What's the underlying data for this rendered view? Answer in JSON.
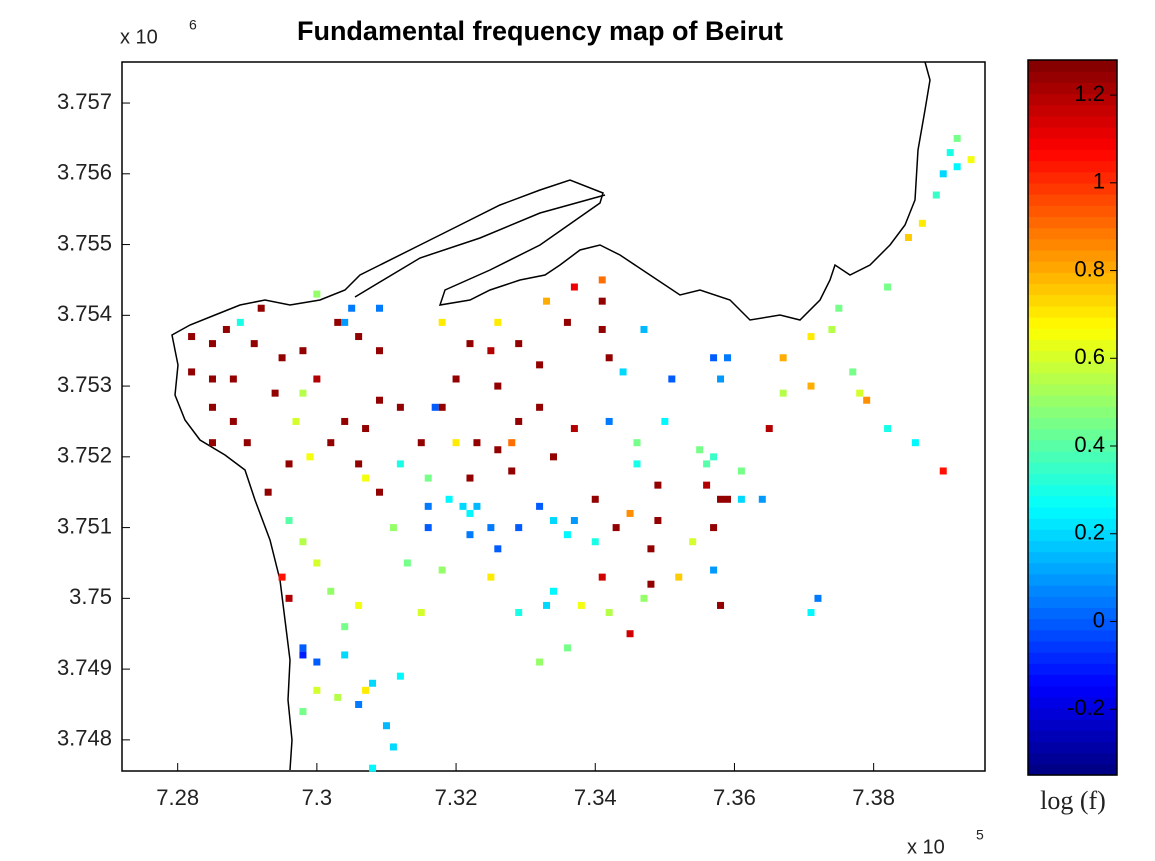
{
  "chart_data": {
    "type": "scatter",
    "title": "Fundamental frequency map of Beirut",
    "x_scale_label": "x 10",
    "x_scale_exponent": "5",
    "y_scale_label": "x 10",
    "y_scale_exponent": "6",
    "colorbar_label": "log (f)",
    "xlim": [
      7.272,
      7.396
    ],
    "ylim": [
      3.74756,
      3.75758
    ],
    "xticks": [
      7.28,
      7.3,
      7.32,
      7.34,
      7.36,
      7.38
    ],
    "yticks": [
      3.748,
      3.749,
      3.75,
      3.751,
      3.752,
      3.753,
      3.754,
      3.755,
      3.756,
      3.757
    ],
    "clim": [
      -0.35,
      1.28
    ],
    "cticks": [
      -0.2,
      0,
      0.2,
      0.4,
      0.6,
      0.8,
      1,
      1.2
    ],
    "colormap": "jet",
    "x": [
      7.282,
      7.285,
      7.287,
      7.292,
      7.291,
      7.282,
      7.285,
      7.288,
      7.285,
      7.288,
      7.29,
      7.285,
      7.294,
      7.298,
      7.295,
      7.3,
      7.303,
      7.306,
      7.309,
      7.309,
      7.312,
      7.307,
      7.304,
      7.302,
      7.293,
      7.296,
      7.306,
      7.309,
      7.315,
      7.318,
      7.32,
      7.322,
      7.325,
      7.326,
      7.329,
      7.332,
      7.329,
      7.332,
      7.336,
      7.337,
      7.341,
      7.341,
      7.342,
      7.337,
      7.334,
      7.328,
      7.326,
      7.323,
      7.322,
      7.34,
      7.343,
      7.349,
      7.349,
      7.356,
      7.358,
      7.357,
      7.359,
      7.348,
      7.348,
      7.358,
      7.345,
      7.341,
      7.365,
      7.39,
      7.296,
      7.295,
      7.321,
      7.322,
      7.323,
      7.319,
      7.325,
      7.329,
      7.332,
      7.334,
      7.336,
      7.337,
      7.316,
      7.316,
      7.322,
      7.326,
      7.312,
      7.317,
      7.305,
      7.304,
      7.309,
      7.298,
      7.298,
      7.3,
      7.304,
      7.306,
      7.31,
      7.311,
      7.308,
      7.312,
      7.308,
      7.351,
      7.357,
      7.359,
      7.358,
      7.344,
      7.347,
      7.342,
      7.364,
      7.361,
      7.357,
      7.372,
      7.371,
      7.356,
      7.357,
      7.39,
      7.392,
      7.389,
      7.391,
      7.386,
      7.382,
      7.35,
      7.346,
      7.334,
      7.333,
      7.34,
      7.329,
      7.298,
      7.297,
      7.299,
      7.296,
      7.298,
      7.3,
      7.302,
      7.306,
      7.304,
      7.3,
      7.298,
      7.303,
      7.307,
      7.313,
      7.315,
      7.318,
      7.325,
      7.332,
      7.336,
      7.338,
      7.342,
      7.347,
      7.352,
      7.354,
      7.355,
      7.361,
      7.367,
      7.371,
      7.371,
      7.374,
      7.375,
      7.378,
      7.377,
      7.379,
      7.387,
      7.385,
      7.382,
      7.392,
      7.394,
      7.367,
      7.346,
      7.32,
      7.316,
      7.311,
      7.318,
      7.326,
      7.333,
      7.341,
      7.3,
      7.307,
      7.289,
      7.345,
      7.328
    ],
    "y": [
      3.7537,
      3.7536,
      3.7538,
      3.7541,
      3.7536,
      3.7532,
      3.7531,
      3.7531,
      3.7527,
      3.7525,
      3.7522,
      3.7522,
      3.7529,
      3.7535,
      3.7534,
      3.7531,
      3.7539,
      3.7537,
      3.7535,
      3.7528,
      3.7527,
      3.7524,
      3.7525,
      3.7522,
      3.7515,
      3.7519,
      3.7519,
      3.7515,
      3.7522,
      3.7527,
      3.7531,
      3.7536,
      3.7535,
      3.753,
      3.7536,
      3.7533,
      3.7525,
      3.7527,
      3.7539,
      3.7544,
      3.7542,
      3.7538,
      3.7534,
      3.7524,
      3.752,
      3.7518,
      3.7521,
      3.7522,
      3.7517,
      3.7514,
      3.751,
      3.7511,
      3.7516,
      3.7516,
      3.7514,
      3.751,
      3.7514,
      3.7507,
      3.7502,
      3.7499,
      3.7495,
      3.7503,
      3.7524,
      3.7518,
      3.75,
      3.7503,
      3.7513,
      3.7512,
      3.7513,
      3.7514,
      3.751,
      3.751,
      3.7513,
      3.7511,
      3.7509,
      3.7511,
      3.7513,
      3.751,
      3.7509,
      3.7507,
      3.7519,
      3.7527,
      3.7541,
      3.7539,
      3.7541,
      3.7493,
      3.7492,
      3.7491,
      3.7492,
      3.7485,
      3.7482,
      3.7479,
      3.7476,
      3.7489,
      3.7488,
      3.7531,
      3.7534,
      3.7534,
      3.7531,
      3.7532,
      3.7538,
      3.7525,
      3.7514,
      3.7514,
      3.7504,
      3.75,
      3.7498,
      3.7519,
      3.752,
      3.756,
      3.7561,
      3.7557,
      3.7563,
      3.7522,
      3.7524,
      3.7525,
      3.7519,
      3.7501,
      3.7499,
      3.7508,
      3.7498,
      3.7529,
      3.7525,
      3.752,
      3.7511,
      3.7508,
      3.7505,
      3.7501,
      3.7499,
      3.7496,
      3.7487,
      3.7484,
      3.7486,
      3.7487,
      3.7505,
      3.7498,
      3.7504,
      3.7503,
      3.7491,
      3.7493,
      3.7499,
      3.7498,
      3.75,
      3.7503,
      3.7508,
      3.7521,
      3.7518,
      3.7529,
      3.753,
      3.7537,
      3.7538,
      3.7541,
      3.7529,
      3.7532,
      3.7528,
      3.7553,
      3.7551,
      3.7544,
      3.7565,
      3.7562,
      3.7534,
      3.7522,
      3.7522,
      3.7517,
      3.751,
      3.7539,
      3.7539,
      3.7542,
      3.7545,
      3.7543,
      3.7517,
      3.7539,
      3.7512,
      3.7522
    ],
    "c": [
      1.25,
      1.25,
      1.25,
      1.25,
      1.25,
      1.25,
      1.25,
      1.25,
      1.25,
      1.25,
      1.25,
      1.25,
      1.25,
      1.25,
      1.25,
      1.2,
      1.25,
      1.25,
      1.25,
      1.25,
      1.25,
      1.25,
      1.25,
      1.25,
      1.25,
      1.25,
      1.25,
      1.25,
      1.25,
      1.25,
      1.25,
      1.25,
      1.2,
      1.25,
      1.25,
      1.25,
      1.25,
      1.25,
      1.25,
      1.1,
      1.25,
      1.25,
      1.25,
      1.2,
      1.25,
      1.25,
      1.25,
      1.25,
      1.25,
      1.25,
      1.25,
      1.25,
      1.25,
      1.2,
      1.25,
      1.25,
      1.25,
      1.25,
      1.25,
      1.25,
      1.15,
      1.15,
      1.2,
      1.05,
      1.2,
      1.05,
      0.2,
      0.25,
      0.15,
      0.25,
      0.05,
      0,
      0,
      0.2,
      0.25,
      0.1,
      0.05,
      0,
      0.05,
      0,
      0.3,
      0,
      0.05,
      0.1,
      0.05,
      0,
      -0.1,
      0,
      0.2,
      0.05,
      0.15,
      0.2,
      0.25,
      0.25,
      0.2,
      0,
      0,
      0.05,
      0.1,
      0.2,
      0.15,
      0.05,
      0.1,
      0.2,
      0.1,
      0.05,
      0.25,
      0.4,
      0.35,
      0.2,
      0.25,
      0.35,
      0.3,
      0.25,
      0.3,
      0.25,
      0.3,
      0.25,
      0.2,
      0.3,
      0.3,
      0.55,
      0.6,
      0.65,
      0.4,
      0.55,
      0.6,
      0.5,
      0.65,
      0.45,
      0.6,
      0.45,
      0.55,
      0.7,
      0.45,
      0.6,
      0.5,
      0.7,
      0.5,
      0.45,
      0.65,
      0.55,
      0.5,
      0.75,
      0.6,
      0.45,
      0.45,
      0.55,
      0.8,
      0.7,
      0.55,
      0.45,
      0.6,
      0.45,
      0.85,
      0.7,
      0.75,
      0.45,
      0.45,
      0.65,
      0.8,
      0.45,
      0.7,
      0.45,
      0.5,
      0.7,
      0.7,
      0.8,
      0.9,
      0.5,
      0.65,
      0.3,
      0.85,
      0.9
    ]
  }
}
